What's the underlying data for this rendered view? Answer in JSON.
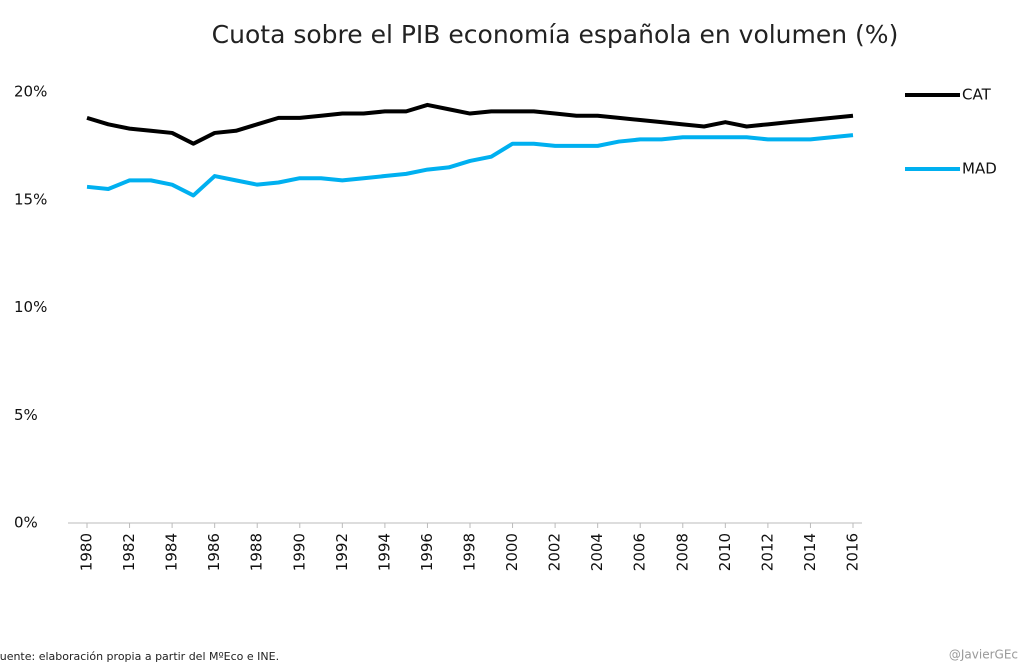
{
  "chart_data": {
    "type": "line",
    "title": "Cuota sobre el PIB economía española en volumen (%)",
    "x": [
      1980,
      1981,
      1982,
      1983,
      1984,
      1985,
      1986,
      1987,
      1988,
      1989,
      1990,
      1991,
      1992,
      1993,
      1994,
      1995,
      1996,
      1997,
      1998,
      1999,
      2000,
      2001,
      2002,
      2003,
      2004,
      2005,
      2006,
      2007,
      2008,
      2009,
      2010,
      2011,
      2012,
      2013,
      2014,
      2015,
      2016
    ],
    "series": [
      {
        "name": "CAT",
        "color": "#000000",
        "values": [
          18.8,
          18.5,
          18.3,
          18.2,
          18.1,
          17.6,
          18.1,
          18.2,
          18.5,
          18.8,
          18.8,
          18.9,
          19.0,
          19.0,
          19.1,
          19.1,
          19.4,
          19.2,
          19.0,
          19.1,
          19.1,
          19.1,
          19.0,
          18.9,
          18.9,
          18.8,
          18.7,
          18.6,
          18.5,
          18.4,
          18.6,
          18.4,
          18.5,
          18.6,
          18.7,
          18.8,
          18.9
        ]
      },
      {
        "name": "MAD",
        "color": "#00b0f0",
        "values": [
          15.6,
          15.5,
          15.9,
          15.9,
          15.7,
          15.2,
          16.1,
          15.9,
          15.7,
          15.8,
          16.0,
          16.0,
          15.9,
          16.0,
          16.1,
          16.2,
          16.4,
          16.5,
          16.8,
          17.0,
          17.6,
          17.6,
          17.5,
          17.5,
          17.5,
          17.7,
          17.8,
          17.8,
          17.9,
          17.9,
          17.9,
          17.9,
          17.8,
          17.8,
          17.8,
          17.9,
          18.0
        ]
      }
    ],
    "xlim": [
      1980,
      2016
    ],
    "xticks": [
      1980,
      1982,
      1984,
      1986,
      1988,
      1990,
      1992,
      1994,
      1996,
      1998,
      2000,
      2002,
      2004,
      2006,
      2008,
      2010,
      2012,
      2014,
      2016
    ],
    "ylim": [
      0,
      20
    ],
    "yticks": [
      {
        "value": 0,
        "label": "0%"
      },
      {
        "value": 5,
        "label": "5%"
      },
      {
        "value": 10,
        "label": "10%"
      },
      {
        "value": 15,
        "label": "15%"
      },
      {
        "value": 20,
        "label": "20%"
      }
    ],
    "grid": false,
    "legend": "right",
    "source": "Fuente: elaboración propia a partir del MºEco e INE.",
    "watermark": "@JavierGEc"
  }
}
